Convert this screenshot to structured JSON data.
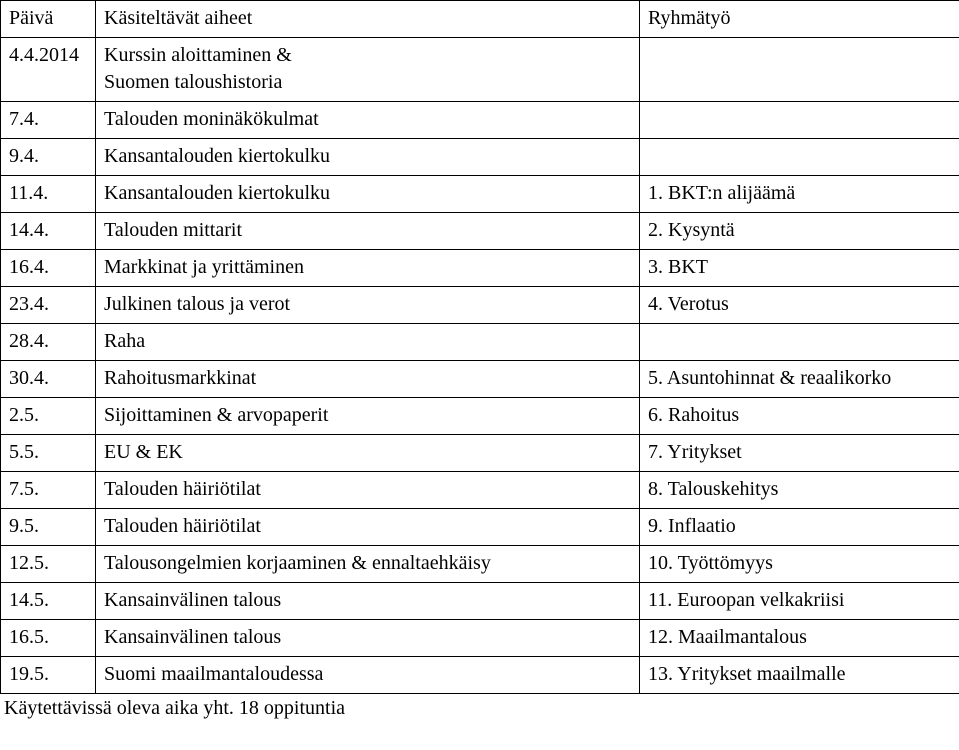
{
  "header": {
    "col1": "Päivä",
    "col2": "Käsiteltävät aiheet",
    "col3": "Ryhmätyö"
  },
  "rows": [
    {
      "date": "4.4.2014",
      "topic_a": "Kurssin aloittaminen &",
      "topic_b": "Suomen taloushistoria",
      "group": ""
    },
    {
      "date": "7.4.",
      "topic": "Talouden moninäkökulmat",
      "group": ""
    },
    {
      "date": "9.4.",
      "topic": "Kansantalouden kiertokulku",
      "group": ""
    },
    {
      "date": "11.4.",
      "topic": "Kansantalouden kiertokulku",
      "group": "1. BKT:n alijäämä"
    },
    {
      "date": "14.4.",
      "topic": "Talouden mittarit",
      "group": "2. Kysyntä"
    },
    {
      "date": "16.4.",
      "topic": "Markkinat ja yrittäminen",
      "group": "3. BKT"
    },
    {
      "date": "23.4.",
      "topic": "Julkinen talous ja verot",
      "group": "4. Verotus"
    },
    {
      "date": "28.4.",
      "topic": "Raha",
      "group": ""
    },
    {
      "date": "30.4.",
      "topic": "Rahoitusmarkkinat",
      "group": "5. Asuntohinnat & reaalikorko"
    },
    {
      "date": "2.5.",
      "topic": "Sijoittaminen & arvopaperit",
      "group": "6. Rahoitus"
    },
    {
      "date": "5.5.",
      "topic": "EU & EK",
      "group": "7. Yritykset"
    },
    {
      "date": "7.5.",
      "topic": "Talouden häiriötilat",
      "group": "8. Talouskehitys"
    },
    {
      "date": "9.5.",
      "topic": "Talouden häiriötilat",
      "group": "9. Inflaatio"
    },
    {
      "date": "12.5.",
      "topic": "Talousongelmien korjaaminen & ennaltaehkäisy",
      "group": "10. Työttömyys"
    },
    {
      "date": "14.5.",
      "topic": "Kansainvälinen talous",
      "group": "11. Euroopan velkakriisi"
    },
    {
      "date": "16.5.",
      "topic": "Kansainvälinen talous",
      "group": "12. Maailmantalous"
    },
    {
      "date": "19.5.",
      "topic": "Suomi maailmantaloudessa",
      "group": "13. Yritykset maailmalle"
    }
  ],
  "footer": "Käytettävissä oleva aika yht. 18 oppituntia"
}
